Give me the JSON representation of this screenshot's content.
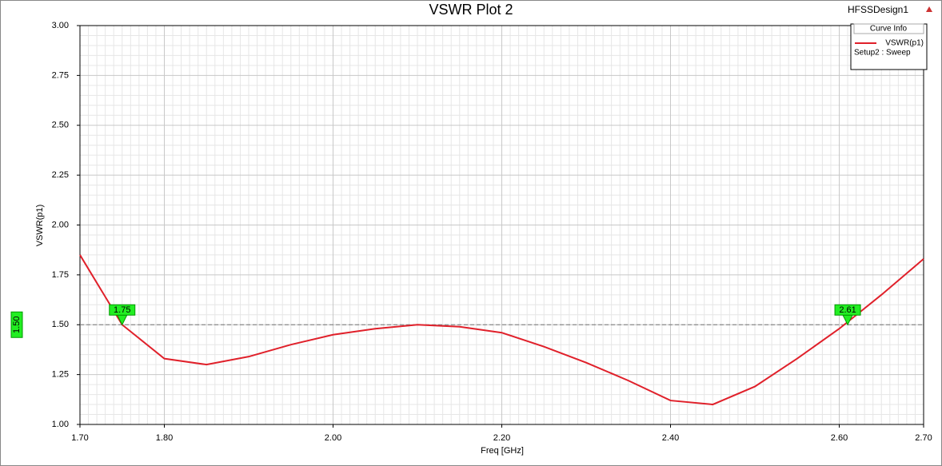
{
  "design_name": "HFSSDesign1",
  "chart_data": {
    "type": "line",
    "title": "VSWR Plot 2",
    "x_label": "Freq [GHz]",
    "y_label": "VSWR(p1)",
    "x": [
      1.7,
      1.75,
      1.8,
      1.85,
      1.9,
      1.95,
      2.0,
      2.05,
      2.1,
      2.15,
      2.2,
      2.25,
      2.3,
      2.35,
      2.4,
      2.45,
      2.5,
      2.55,
      2.6,
      2.65,
      2.7
    ],
    "series": [
      {
        "name": "VSWR(p1)",
        "solution": "Setup2 : Sweep",
        "color": "#e0202a",
        "values": [
          1.85,
          1.5,
          1.33,
          1.3,
          1.34,
          1.4,
          1.45,
          1.48,
          1.5,
          1.49,
          1.46,
          1.39,
          1.31,
          1.22,
          1.12,
          1.1,
          1.19,
          1.33,
          1.48,
          1.65,
          1.83
        ]
      }
    ],
    "xlim": [
      1.7,
      2.7
    ],
    "xticks": [
      {
        "value": 1.7,
        "label": "1.70"
      },
      {
        "value": 1.8,
        "label": "1.80"
      },
      {
        "value": 2.0,
        "label": "2.00"
      },
      {
        "value": 2.2,
        "label": "2.20"
      },
      {
        "value": 2.4,
        "label": "2.40"
      },
      {
        "value": 2.6,
        "label": "2.60"
      },
      {
        "value": 2.7,
        "label": "2.70"
      }
    ],
    "ylim": [
      1,
      3
    ],
    "yticks": [
      {
        "value": 1,
        "label": "1.00"
      },
      1.25,
      {
        "value": 1.5,
        "label": "1.50"
      },
      1.75,
      {
        "value": 2,
        "label": "2.00"
      },
      2.25,
      {
        "value": 2.5,
        "label": "2.50"
      },
      2.75,
      {
        "value": 3,
        "label": "3.00"
      }
    ],
    "grid": true,
    "legend_title": "Curve Info",
    "reference_line": {
      "value": 1.5,
      "label": "1.50"
    },
    "markers": [
      {
        "x": 1.75,
        "y": 1.5
      },
      {
        "x": 2.61,
        "y": 1.5
      }
    ]
  }
}
